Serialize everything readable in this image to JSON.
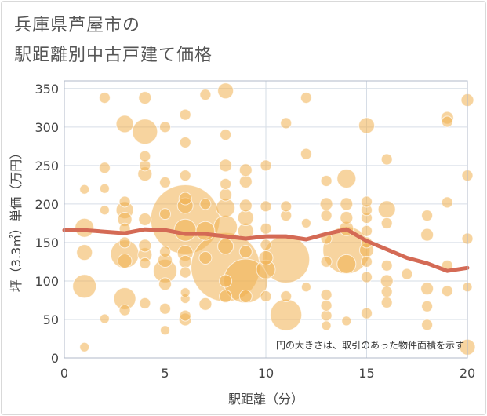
{
  "title_line1": "兵庫県芦屋市の",
  "title_line2": "駅距離別中古戸建て価格",
  "colors": {
    "bubble": "#f0b050",
    "line": "#d46a55",
    "grid": "#d6dde6",
    "plot_border": "#b0b8c8"
  },
  "chart_data": {
    "type": "scatter",
    "xlabel": "駅距離（分）",
    "ylabel": "坪（3.3㎡）単価（万円）",
    "xlim": [
      0,
      20
    ],
    "ylim": [
      0,
      360
    ],
    "xticks": [
      0,
      5,
      10,
      15,
      20
    ],
    "yticks": [
      0,
      50,
      100,
      150,
      200,
      250,
      300,
      350
    ],
    "grid": true,
    "annotation": "円の大きさは、取引のあった物件面積を示す",
    "trend": {
      "x": [
        0,
        1,
        2,
        3,
        4,
        5,
        6,
        7,
        8,
        9,
        10,
        11,
        12,
        13,
        14,
        15,
        16,
        17,
        18,
        19,
        20
      ],
      "y": [
        166,
        166,
        164,
        162,
        167,
        166,
        161,
        161,
        158,
        155,
        158,
        158,
        154,
        161,
        167,
        152,
        141,
        130,
        123,
        113,
        117
      ]
    },
    "points": [
      {
        "x": 1,
        "y": 14,
        "r": 6
      },
      {
        "x": 1,
        "y": 93,
        "r": 15
      },
      {
        "x": 1,
        "y": 137,
        "r": 10
      },
      {
        "x": 1,
        "y": 169,
        "r": 12
      },
      {
        "x": 1,
        "y": 219,
        "r": 6
      },
      {
        "x": 2,
        "y": 51,
        "r": 6
      },
      {
        "x": 2,
        "y": 192,
        "r": 6
      },
      {
        "x": 2,
        "y": 220,
        "r": 6
      },
      {
        "x": 2,
        "y": 247,
        "r": 7
      },
      {
        "x": 2,
        "y": 338,
        "r": 7
      },
      {
        "x": 3,
        "y": 62,
        "r": 7
      },
      {
        "x": 3,
        "y": 77,
        "r": 14
      },
      {
        "x": 3,
        "y": 126,
        "r": 9
      },
      {
        "x": 3,
        "y": 135,
        "r": 18
      },
      {
        "x": 3,
        "y": 150,
        "r": 7
      },
      {
        "x": 3,
        "y": 168,
        "r": 7
      },
      {
        "x": 3,
        "y": 180,
        "r": 9
      },
      {
        "x": 3,
        "y": 192,
        "r": 11
      },
      {
        "x": 3,
        "y": 203,
        "r": 7
      },
      {
        "x": 3,
        "y": 304,
        "r": 11
      },
      {
        "x": 4,
        "y": 71,
        "r": 7
      },
      {
        "x": 4,
        "y": 123,
        "r": 7
      },
      {
        "x": 4,
        "y": 134,
        "r": 9
      },
      {
        "x": 4,
        "y": 146,
        "r": 8
      },
      {
        "x": 4,
        "y": 180,
        "r": 8
      },
      {
        "x": 4,
        "y": 239,
        "r": 9
      },
      {
        "x": 4,
        "y": 250,
        "r": 7
      },
      {
        "x": 4,
        "y": 262,
        "r": 7
      },
      {
        "x": 4,
        "y": 294,
        "r": 16
      },
      {
        "x": 4,
        "y": 338,
        "r": 8
      },
      {
        "x": 5,
        "y": 36,
        "r": 6
      },
      {
        "x": 5,
        "y": 64,
        "r": 7
      },
      {
        "x": 5,
        "y": 96,
        "r": 8
      },
      {
        "x": 5,
        "y": 113,
        "r": 15
      },
      {
        "x": 5,
        "y": 127,
        "r": 9
      },
      {
        "x": 5,
        "y": 138,
        "r": 7
      },
      {
        "x": 5,
        "y": 187,
        "r": 7
      },
      {
        "x": 5,
        "y": 228,
        "r": 7
      },
      {
        "x": 5,
        "y": 300,
        "r": 7
      },
      {
        "x": 6,
        "y": 50,
        "r": 8
      },
      {
        "x": 6,
        "y": 55,
        "r": 7
      },
      {
        "x": 6,
        "y": 77,
        "r": 6
      },
      {
        "x": 6,
        "y": 85,
        "r": 6
      },
      {
        "x": 6,
        "y": 111,
        "r": 7
      },
      {
        "x": 6,
        "y": 125,
        "r": 8
      },
      {
        "x": 6,
        "y": 136,
        "r": 10
      },
      {
        "x": 6,
        "y": 166,
        "r": 14
      },
      {
        "x": 6,
        "y": 180,
        "r": 44
      },
      {
        "x": 6,
        "y": 198,
        "r": 10
      },
      {
        "x": 6,
        "y": 207,
        "r": 8
      },
      {
        "x": 6,
        "y": 237,
        "r": 7
      },
      {
        "x": 6,
        "y": 280,
        "r": 7
      },
      {
        "x": 6,
        "y": 316,
        "r": 7
      },
      {
        "x": 7,
        "y": 70,
        "r": 8
      },
      {
        "x": 7,
        "y": 130,
        "r": 8
      },
      {
        "x": 7,
        "y": 165,
        "r": 12
      },
      {
        "x": 7,
        "y": 200,
        "r": 7
      },
      {
        "x": 7,
        "y": 342,
        "r": 7
      },
      {
        "x": 8,
        "y": 80,
        "r": 8
      },
      {
        "x": 8,
        "y": 100,
        "r": 8
      },
      {
        "x": 8,
        "y": 118,
        "r": 44
      },
      {
        "x": 8,
        "y": 145,
        "r": 10
      },
      {
        "x": 8,
        "y": 170,
        "r": 15
      },
      {
        "x": 8,
        "y": 195,
        "r": 12
      },
      {
        "x": 8,
        "y": 212,
        "r": 8
      },
      {
        "x": 8,
        "y": 226,
        "r": 7
      },
      {
        "x": 8,
        "y": 250,
        "r": 8
      },
      {
        "x": 8,
        "y": 290,
        "r": 7
      },
      {
        "x": 8,
        "y": 347,
        "r": 10
      },
      {
        "x": 9,
        "y": 80,
        "r": 8
      },
      {
        "x": 9,
        "y": 100,
        "r": 28
      },
      {
        "x": 9,
        "y": 138,
        "r": 8
      },
      {
        "x": 9,
        "y": 165,
        "r": 10
      },
      {
        "x": 9,
        "y": 182,
        "r": 10
      },
      {
        "x": 9,
        "y": 198,
        "r": 8
      },
      {
        "x": 9,
        "y": 229,
        "r": 8
      },
      {
        "x": 9,
        "y": 244,
        "r": 8
      },
      {
        "x": 10,
        "y": 80,
        "r": 7
      },
      {
        "x": 10,
        "y": 115,
        "r": 12
      },
      {
        "x": 10,
        "y": 130,
        "r": 9
      },
      {
        "x": 10,
        "y": 147,
        "r": 7
      },
      {
        "x": 10,
        "y": 168,
        "r": 7
      },
      {
        "x": 10,
        "y": 197,
        "r": 7
      },
      {
        "x": 10,
        "y": 250,
        "r": 7
      },
      {
        "x": 11,
        "y": 56,
        "r": 20
      },
      {
        "x": 11,
        "y": 80,
        "r": 7
      },
      {
        "x": 11,
        "y": 128,
        "r": 30
      },
      {
        "x": 11,
        "y": 185,
        "r": 7
      },
      {
        "x": 11,
        "y": 197,
        "r": 7
      },
      {
        "x": 11,
        "y": 305,
        "r": 7
      },
      {
        "x": 12,
        "y": 92,
        "r": 6
      },
      {
        "x": 12,
        "y": 175,
        "r": 6
      },
      {
        "x": 12,
        "y": 265,
        "r": 7
      },
      {
        "x": 12,
        "y": 338,
        "r": 7
      },
      {
        "x": 13,
        "y": 42,
        "r": 6
      },
      {
        "x": 13,
        "y": 55,
        "r": 7
      },
      {
        "x": 13,
        "y": 68,
        "r": 7
      },
      {
        "x": 13,
        "y": 82,
        "r": 7
      },
      {
        "x": 13,
        "y": 125,
        "r": 7
      },
      {
        "x": 13,
        "y": 155,
        "r": 7
      },
      {
        "x": 13,
        "y": 185,
        "r": 7
      },
      {
        "x": 13,
        "y": 200,
        "r": 8
      },
      {
        "x": 13,
        "y": 230,
        "r": 7
      },
      {
        "x": 14,
        "y": 48,
        "r": 6
      },
      {
        "x": 14,
        "y": 122,
        "r": 12
      },
      {
        "x": 14,
        "y": 140,
        "r": 30
      },
      {
        "x": 14,
        "y": 168,
        "r": 9
      },
      {
        "x": 14,
        "y": 182,
        "r": 8
      },
      {
        "x": 14,
        "y": 200,
        "r": 8
      },
      {
        "x": 14,
        "y": 233,
        "r": 12
      },
      {
        "x": 15,
        "y": 58,
        "r": 7
      },
      {
        "x": 15,
        "y": 105,
        "r": 7
      },
      {
        "x": 15,
        "y": 125,
        "r": 7
      },
      {
        "x": 15,
        "y": 140,
        "r": 9
      },
      {
        "x": 15,
        "y": 150,
        "r": 7
      },
      {
        "x": 15,
        "y": 165,
        "r": 7
      },
      {
        "x": 15,
        "y": 182,
        "r": 7
      },
      {
        "x": 15,
        "y": 192,
        "r": 7
      },
      {
        "x": 15,
        "y": 203,
        "r": 7
      },
      {
        "x": 15,
        "y": 302,
        "r": 10
      },
      {
        "x": 16,
        "y": 72,
        "r": 7
      },
      {
        "x": 16,
        "y": 86,
        "r": 7
      },
      {
        "x": 16,
        "y": 100,
        "r": 8
      },
      {
        "x": 16,
        "y": 120,
        "r": 7
      },
      {
        "x": 16,
        "y": 175,
        "r": 7
      },
      {
        "x": 16,
        "y": 193,
        "r": 11
      },
      {
        "x": 16,
        "y": 258,
        "r": 7
      },
      {
        "x": 17,
        "y": 109,
        "r": 7
      },
      {
        "x": 18,
        "y": 43,
        "r": 7
      },
      {
        "x": 18,
        "y": 67,
        "r": 7
      },
      {
        "x": 18,
        "y": 90,
        "r": 8
      },
      {
        "x": 18,
        "y": 160,
        "r": 8
      },
      {
        "x": 18,
        "y": 185,
        "r": 7
      },
      {
        "x": 19,
        "y": 87,
        "r": 7
      },
      {
        "x": 19,
        "y": 120,
        "r": 7
      },
      {
        "x": 19,
        "y": 202,
        "r": 7
      },
      {
        "x": 19,
        "y": 307,
        "r": 7
      },
      {
        "x": 19,
        "y": 312,
        "r": 8
      },
      {
        "x": 20,
        "y": 14,
        "r": 10
      },
      {
        "x": 20,
        "y": 92,
        "r": 6
      },
      {
        "x": 20,
        "y": 155,
        "r": 7
      },
      {
        "x": 20,
        "y": 237,
        "r": 7
      },
      {
        "x": 20,
        "y": 335,
        "r": 8
      }
    ]
  }
}
